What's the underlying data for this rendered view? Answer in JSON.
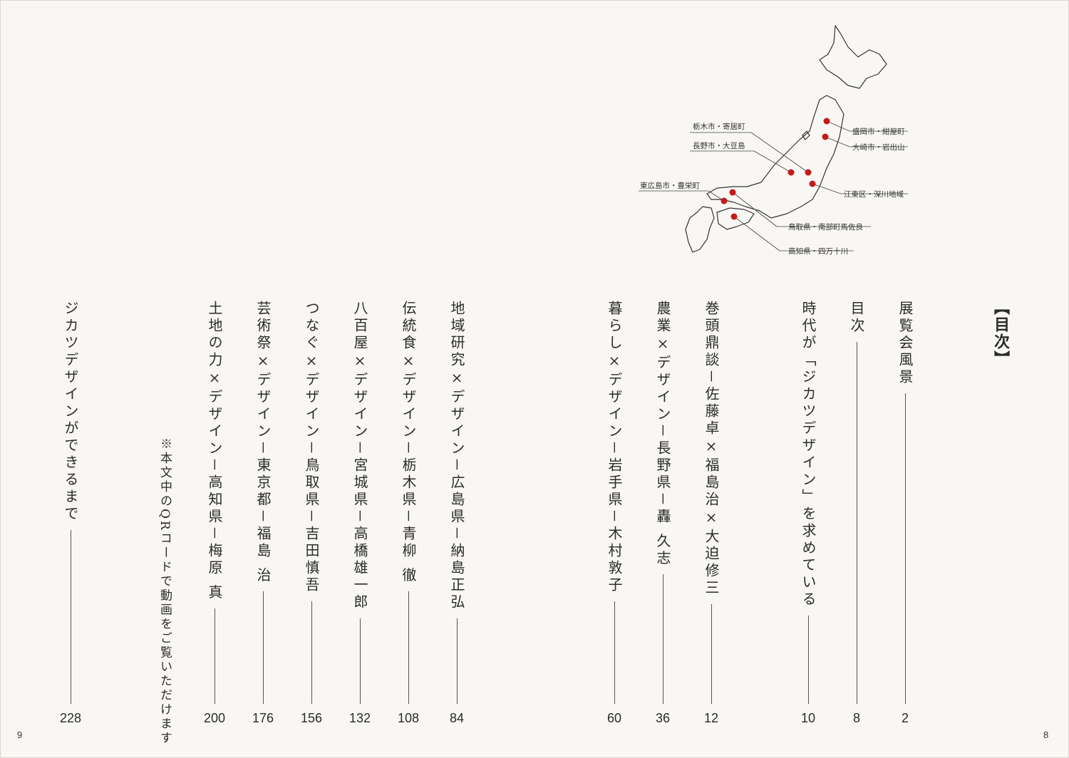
{
  "toc": {
    "heading": "【目次】",
    "entries": [
      {
        "title": "展覧会風景",
        "page": "2"
      },
      {
        "title": "目次",
        "page": "8"
      },
      {
        "title": "時代が「ジカツデザイン」を求めている",
        "page": "10"
      },
      {
        "title": "巻頭鼎談－佐藤卓×福島治×大迫修三",
        "page": "12"
      },
      {
        "title": "農業×デザイン－長野県－轟 久志",
        "page": "36"
      },
      {
        "title": "暮らし×デザイン－岩手県－木村敦子",
        "page": "60"
      },
      {
        "title": "地域研究×デザイン－広島県－納島正弘",
        "page": "84"
      },
      {
        "title": "伝統食×デザイン－栃木県－青柳 徹",
        "page": "108"
      },
      {
        "title": "八百屋×デザイン－宮城県－高橋雄一郎",
        "page": "132"
      },
      {
        "title": "つなぐ×デザイン－鳥取県－吉田慎吾",
        "page": "156"
      },
      {
        "title": "芸術祭×デザイン－東京都－福島 治",
        "page": "176"
      },
      {
        "title": "土地の力×デザイン－高知県－梅原 真",
        "page": "200"
      },
      {
        "title": "ジカツデザインができるまで",
        "page": "228"
      }
    ],
    "note": "※本文中のQRコードで動画をご覧いただけます"
  },
  "map": {
    "marker_color": "#c41a1a",
    "labels": {
      "tochigi": "栃木市・寄居町",
      "nagano": "長野市・大豆島",
      "hiroshima": "東広島市・豊栄町",
      "morioka": "盛岡市・紺屋町",
      "osaki": "大崎市・岩出山",
      "koto": "江東区・深川地域",
      "tottori": "鳥取県・南部町馬佐良",
      "kochi": "高知県・四万十川"
    }
  },
  "folio": {
    "left": "9",
    "right": "8"
  }
}
